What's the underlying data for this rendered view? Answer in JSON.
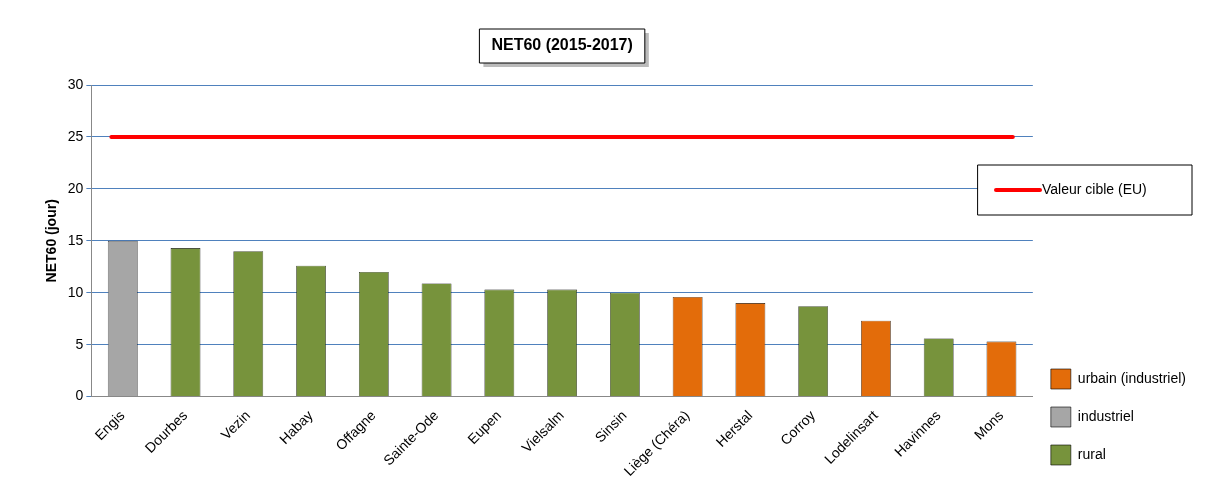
{
  "chart_data": {
    "type": "bar",
    "title": "NET60 (2015-2017)",
    "ylabel": "NET60 (jour)",
    "categories": [
      "Engis",
      "Dourbes",
      "Vezin",
      "Habay",
      "Offagne",
      "Sainte-Ode",
      "Eupen",
      "Vielsalm",
      "Sinsin",
      "Liège (Chéra)",
      "Herstal",
      "Corroy",
      "Lodelinsart",
      "Havinnes",
      "Mons"
    ],
    "stacked": true,
    "series": [
      {
        "name": "urbain (industriel)",
        "color": "#e36c0a",
        "values": [
          null,
          null,
          null,
          null,
          null,
          null,
          null,
          null,
          null,
          9.6,
          9,
          null,
          7.3,
          null,
          5.3
        ]
      },
      {
        "name": "industriel",
        "color": "#a6a6a6",
        "values": [
          15,
          null,
          null,
          null,
          null,
          null,
          null,
          null,
          null,
          null,
          null,
          null,
          null,
          null,
          null
        ]
      },
      {
        "name": "rural",
        "color": "#77933c",
        "values": [
          null,
          14.3,
          14,
          12.6,
          12,
          10.9,
          10.3,
          10.3,
          10,
          null,
          null,
          8.7,
          null,
          5.6,
          null
        ]
      }
    ],
    "ylim": [
      0,
      30
    ],
    "yticks": [
      0,
      5,
      10,
      15,
      20,
      25,
      30
    ],
    "grid": "y",
    "legend": "right",
    "ref_lines": [
      {
        "axis": "y",
        "value": 25,
        "label": "Valeur cible (EU)",
        "color": "#ff0000"
      }
    ]
  }
}
